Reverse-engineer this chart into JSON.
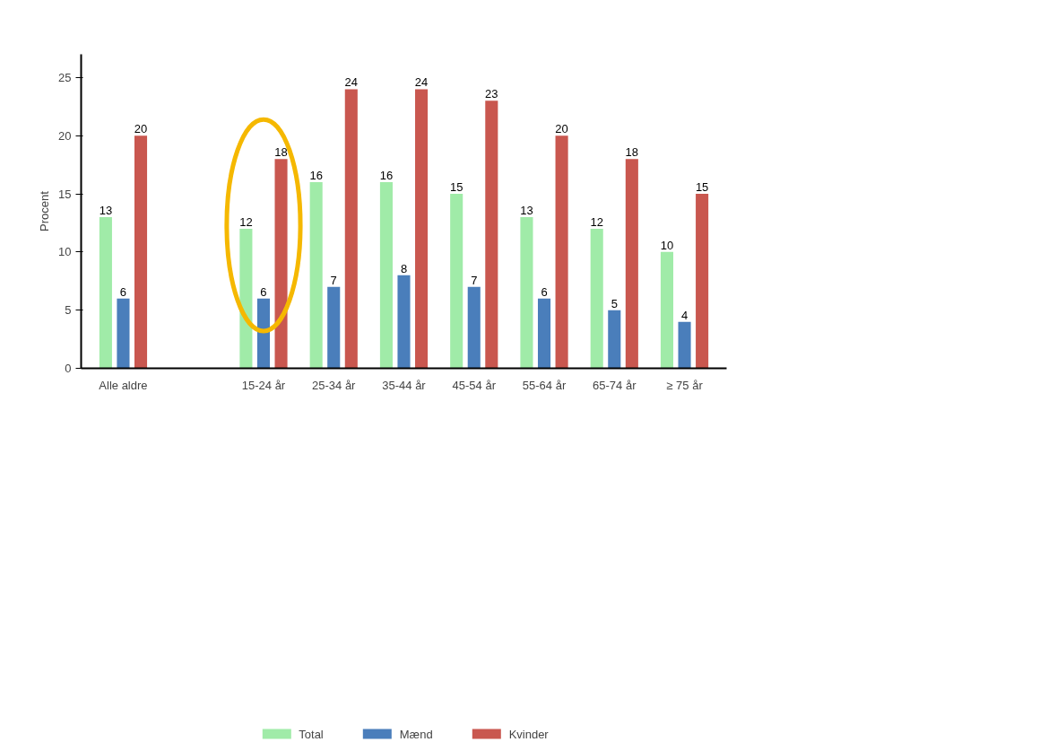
{
  "chart_data": {
    "type": "bar",
    "ylabel": "Procent",
    "categories": [
      "Alle aldre",
      null,
      "15-24 år",
      "25-34 år",
      "35-44 år",
      "45-54 år",
      "55-64 år",
      "65-74 år",
      "≥ 75 år"
    ],
    "series": [
      {
        "name": "Total",
        "color": "#a0eba8",
        "values": [
          13,
          null,
          12,
          16,
          16,
          15,
          13,
          12,
          10
        ]
      },
      {
        "name": "Mænd",
        "color": "#4a7ebb",
        "values": [
          6,
          null,
          6,
          7,
          8,
          7,
          6,
          5,
          4
        ]
      },
      {
        "name": "Kvinder",
        "color": "#c9574f",
        "values": [
          20,
          null,
          18,
          24,
          24,
          23,
          20,
          18,
          15
        ]
      }
    ],
    "ylim": [
      0,
      27
    ],
    "yticks": [
      0,
      5,
      10,
      15,
      20,
      25
    ],
    "grid": false,
    "legend": "bottom",
    "data_labels": true
  }
}
